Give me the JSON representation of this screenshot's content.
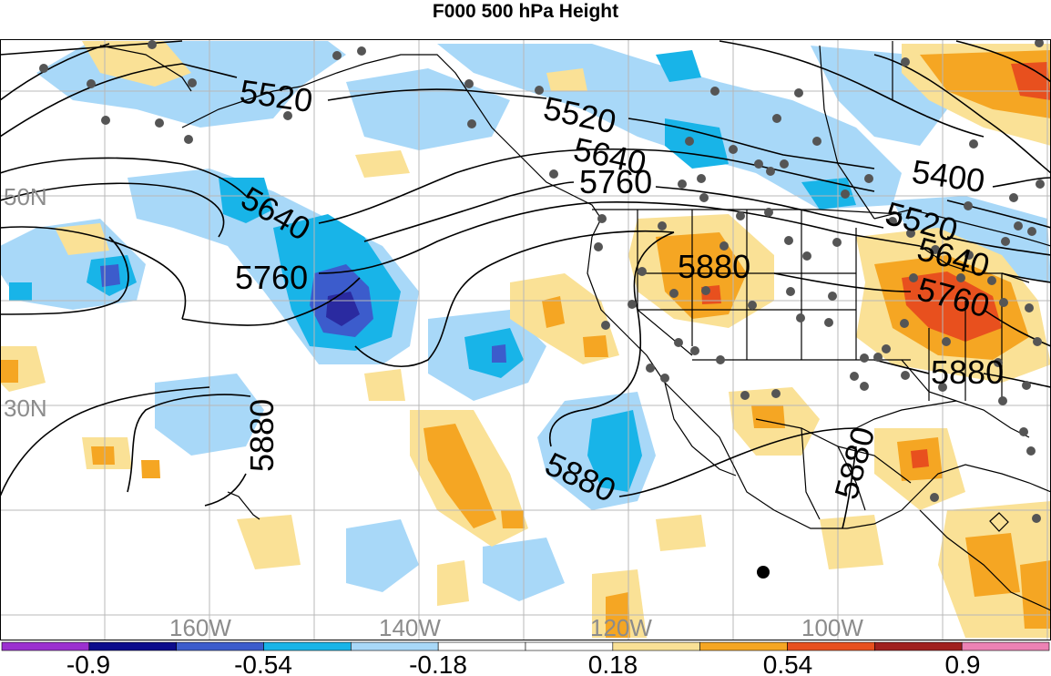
{
  "title": "F000 500 hPa Height",
  "lat_labels": [
    "50N",
    "30N"
  ],
  "lon_labels": [
    "160W",
    "140W",
    "120W",
    "100W"
  ],
  "contour_labels": [
    "5520",
    "5640",
    "5760",
    "5880",
    "5400"
  ],
  "colorbar": {
    "colors": [
      "#9b30d0",
      "#0c0c8c",
      "#3c5ccc",
      "#18b4e8",
      "#a8d8f8",
      "#ffffff",
      "#ffffff",
      "#fae196",
      "#f5a623",
      "#e8501e",
      "#a0201e",
      "#ec82b4"
    ],
    "tick_labels": [
      "-0.9",
      "-0.54",
      "-0.18",
      "0.18",
      "0.54",
      "0.9"
    ]
  },
  "fill_colors": {
    "light_blue": "#a8d8f8",
    "mid_blue": "#18b4e8",
    "dark_blue": "#3c5ccc",
    "navy": "#2a2aa0",
    "light_yellow": "#fae196",
    "orange": "#f5a623",
    "red_orange": "#e8501e"
  }
}
